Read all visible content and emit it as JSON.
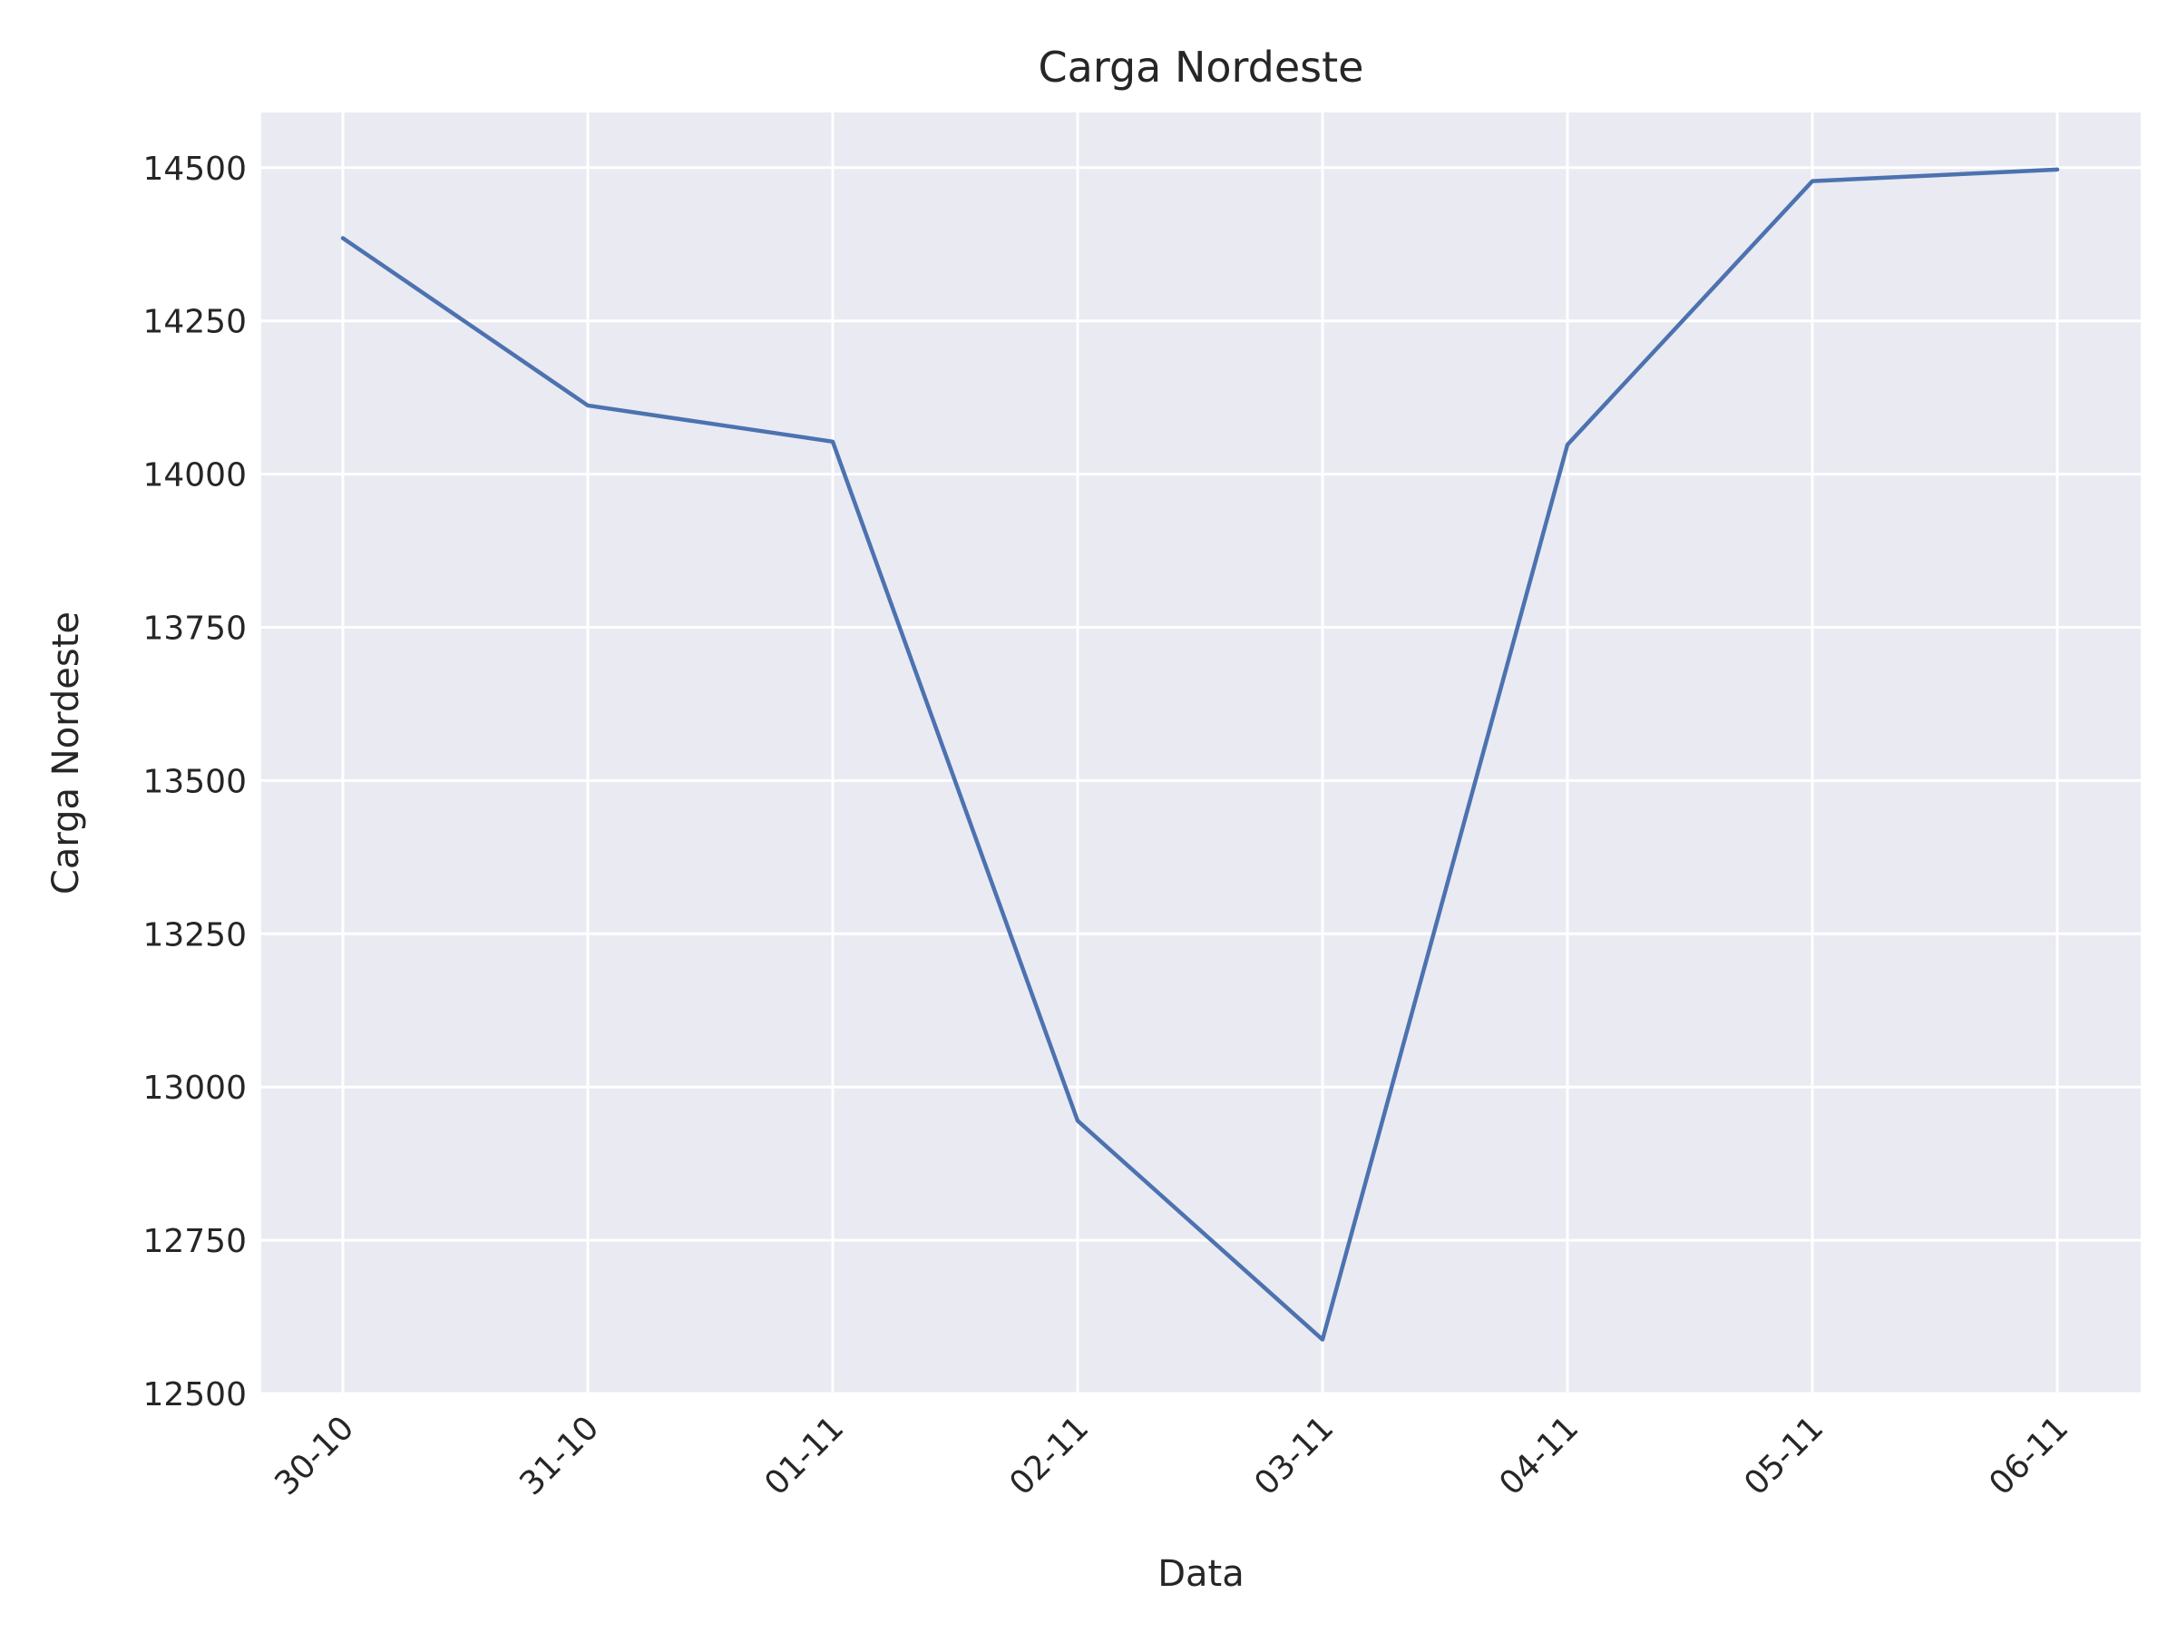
{
  "chart_data": {
    "type": "line",
    "title": "Carga Nordeste",
    "xlabel": "Data",
    "ylabel": "Carga Nordeste",
    "categories": [
      "30-10",
      "31-10",
      "01-11",
      "02-11",
      "03-11",
      "04-11",
      "05-11",
      "06-11"
    ],
    "series": [
      {
        "values": [
          14385,
          14112,
          14053,
          12945,
          12588,
          14048,
          14478,
          14497
        ]
      }
    ],
    "ylim": [
      12500,
      14590
    ],
    "yticks": [
      12500,
      12750,
      13000,
      13250,
      13500,
      13750,
      14000,
      14250,
      14500
    ],
    "grid": true,
    "colors": {
      "background": "#eaeaf2",
      "grid": "#ffffff",
      "line": "#4c72b0",
      "text": "#262626"
    }
  }
}
